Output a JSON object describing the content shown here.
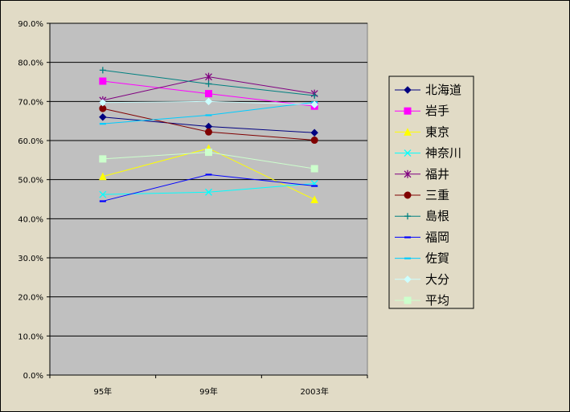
{
  "chart_data": {
    "type": "line",
    "title": "",
    "xlabel": "",
    "ylabel": "",
    "categories": [
      "95年",
      "99年",
      "2003年"
    ],
    "ylim": [
      0,
      0.9
    ],
    "yticks": [
      "0.0%",
      "10.0%",
      "20.0%",
      "30.0%",
      "40.0%",
      "50.0%",
      "60.0%",
      "70.0%",
      "80.0%",
      "90.0%"
    ],
    "grid": "horizontal",
    "plot_background": "#c0c0c0",
    "legend_position": "right",
    "series": [
      {
        "name": "北海道",
        "values": [
          0.66,
          0.636,
          0.62
        ],
        "color": "#000080",
        "marker": "diamond"
      },
      {
        "name": "岩手",
        "values": [
          0.752,
          0.72,
          0.688
        ],
        "color": "#ff00ff",
        "marker": "square"
      },
      {
        "name": "東京",
        "values": [
          0.508,
          0.58,
          0.449
        ],
        "color": "#ffff00",
        "marker": "triangle"
      },
      {
        "name": "神奈川",
        "values": [
          0.462,
          0.468,
          0.49
        ],
        "color": "#00ffff",
        "marker": "x"
      },
      {
        "name": "福井",
        "values": [
          0.703,
          0.763,
          0.72
        ],
        "color": "#800080",
        "marker": "star"
      },
      {
        "name": "三重",
        "values": [
          0.682,
          0.622,
          0.601
        ],
        "color": "#800000",
        "marker": "circle"
      },
      {
        "name": "島根",
        "values": [
          0.78,
          0.745,
          0.715
        ],
        "color": "#008080",
        "marker": "plus"
      },
      {
        "name": "福岡",
        "values": [
          0.445,
          0.513,
          0.484
        ],
        "color": "#0000ff",
        "marker": "dash"
      },
      {
        "name": "佐賀",
        "values": [
          0.643,
          0.665,
          0.698
        ],
        "color": "#00ccff",
        "marker": "dash"
      },
      {
        "name": "大分",
        "values": [
          0.697,
          0.7,
          0.692
        ],
        "color": "#ccffff",
        "marker": "diamond"
      },
      {
        "name": "平均",
        "values": [
          0.553,
          0.57,
          0.528
        ],
        "color": "#ccffcc",
        "marker": "square"
      }
    ]
  }
}
